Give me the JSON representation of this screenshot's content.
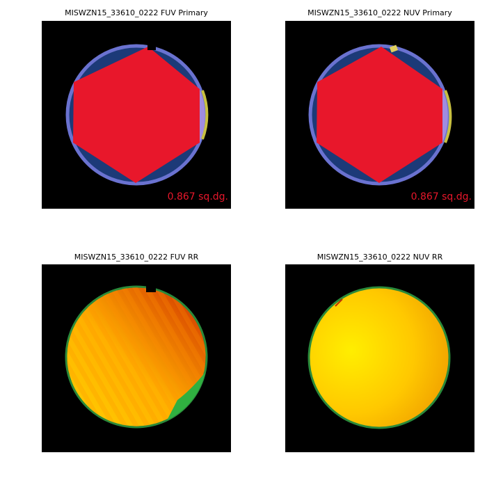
{
  "panels": [
    {
      "title": "MISWZN15_33610_0222 FUV Primary",
      "area": "0.867 sq.dg."
    },
    {
      "title": "MISWZN15_33610_0222 NUV Primary",
      "area": "0.867 sq.dg."
    },
    {
      "title": "MISWZN15_33610_0222 FUV RR"
    },
    {
      "title": "MISWZN15_33610_0222 NUV RR"
    }
  ]
}
